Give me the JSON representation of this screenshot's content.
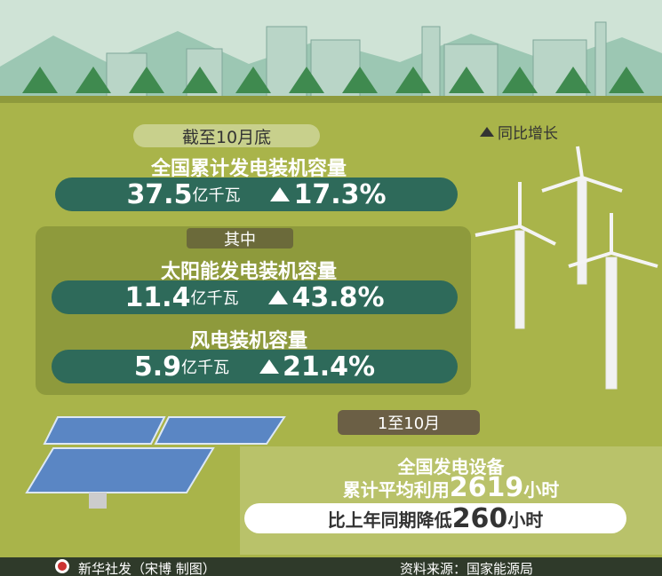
{
  "header": {
    "period": "截至10月底",
    "legend": "同比增长"
  },
  "total": {
    "label": "全国累计发电装机容量",
    "value": "37.5",
    "unit": "亿千瓦",
    "growth": "17.3%"
  },
  "breakdown": {
    "title": "其中",
    "items": [
      {
        "label": "太阳能发电装机容量",
        "value": "11.4",
        "unit": "亿千瓦",
        "growth": "43.8%"
      },
      {
        "label": "风电装机容量",
        "value": "5.9",
        "unit": "亿千瓦",
        "growth": "21.4%"
      }
    ]
  },
  "hours": {
    "period": "1至10月",
    "line1": "全国发电设备",
    "line2": {
      "prefix": "累计平均利用",
      "value": "2619",
      "unit": "小时"
    },
    "line3": {
      "prefix": "比上年同期降低",
      "value": "260",
      "unit": "小时"
    }
  },
  "footer": {
    "credit": "新华社发（宋博 制图）",
    "source": "资料来源：国家能源局"
  }
}
